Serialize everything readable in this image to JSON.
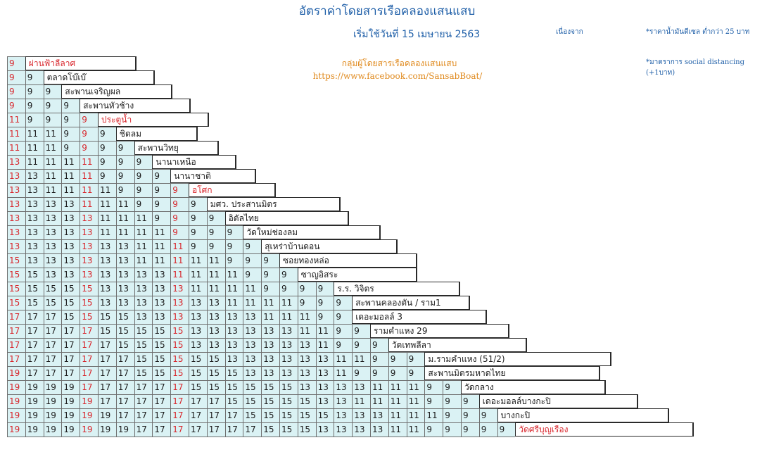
{
  "title": "อัตราค่าโดยสารเรือคลองแสนแสบ",
  "effective": "เริ่มใช้วันที่  15  เมษายน 2563",
  "reason_label": "เนื่องจาก",
  "note_fuel": "*ราคาน้ำมันดีเซล ต่ำกว่า 25 บาท",
  "note_distancing": "*มาตราการ social distancing (+1บาท)",
  "group_name": "กลุ่มผู้โดยสารเรือคลองแสนแสบ",
  "group_url": "https://www.facebook.com/SansabBoat/",
  "colors": {
    "cell_bg": "#daf2f4",
    "red": "#d8262c",
    "title": "#1f5fa8",
    "group": "#e08a1e"
  },
  "table": {
    "highlight_columns": [
      0,
      4,
      9
    ],
    "rows": [
      {
        "label": "ผ่านฟ้าลีลาศ",
        "label_red": true,
        "values": [
          9
        ]
      },
      {
        "label": "ตลาดโบ๊เบ๊",
        "label_red": false,
        "values": [
          9,
          9
        ]
      },
      {
        "label": "สะพานเจริญผล",
        "label_red": false,
        "values": [
          9,
          9,
          9
        ]
      },
      {
        "label": "สะพานหัวช้าง",
        "label_red": false,
        "values": [
          9,
          9,
          9,
          9
        ]
      },
      {
        "label": "ประตูน้ำ",
        "label_red": true,
        "values": [
          11,
          9,
          9,
          9,
          9
        ]
      },
      {
        "label": "ชิดลม",
        "label_red": false,
        "values": [
          11,
          11,
          11,
          9,
          9,
          9
        ]
      },
      {
        "label": "สะพานวิทยุ",
        "label_red": false,
        "values": [
          11,
          11,
          11,
          9,
          9,
          9,
          9
        ]
      },
      {
        "label": "นานาเหนือ",
        "label_red": false,
        "values": [
          13,
          11,
          11,
          11,
          11,
          9,
          9,
          9
        ]
      },
      {
        "label": "นานาชาติ",
        "label_red": false,
        "values": [
          13,
          13,
          11,
          11,
          11,
          9,
          9,
          9,
          9
        ]
      },
      {
        "label": "อโศก",
        "label_red": true,
        "values": [
          13,
          13,
          11,
          11,
          11,
          11,
          9,
          9,
          9,
          9
        ]
      },
      {
        "label": "มศว. ประสานมิตร",
        "label_red": false,
        "values": [
          13,
          13,
          13,
          13,
          11,
          11,
          11,
          9,
          9,
          9,
          9
        ]
      },
      {
        "label": "อิตัลไทย",
        "label_red": false,
        "values": [
          13,
          13,
          13,
          13,
          13,
          11,
          11,
          11,
          9,
          9,
          9,
          9
        ]
      },
      {
        "label": "วัดใหม่ช่องลม",
        "label_red": false,
        "values": [
          13,
          13,
          13,
          13,
          13,
          11,
          11,
          11,
          11,
          9,
          9,
          9,
          9
        ]
      },
      {
        "label": "สุเหร่าบ้านดอน",
        "label_red": false,
        "values": [
          13,
          13,
          13,
          13,
          13,
          13,
          13,
          11,
          11,
          11,
          9,
          9,
          9,
          9
        ]
      },
      {
        "label": "ซอยทองหล่อ",
        "label_red": false,
        "values": [
          15,
          13,
          13,
          13,
          13,
          13,
          13,
          11,
          11,
          11,
          11,
          11,
          9,
          9,
          9
        ]
      },
      {
        "label": "ซาญอิสระ",
        "label_red": false,
        "values": [
          15,
          15,
          13,
          13,
          13,
          13,
          13,
          13,
          13,
          11,
          11,
          11,
          11,
          9,
          9,
          9
        ]
      },
      {
        "label": "ร.ร. วิจิตร",
        "label_red": false,
        "values": [
          15,
          15,
          15,
          15,
          15,
          13,
          13,
          13,
          13,
          13,
          11,
          11,
          11,
          11,
          9,
          9,
          9,
          9
        ]
      },
      {
        "label": "สะพานคลองตัน / ราม1",
        "label_red": false,
        "values": [
          15,
          15,
          15,
          15,
          15,
          13,
          13,
          13,
          13,
          13,
          13,
          13,
          11,
          11,
          11,
          11,
          9,
          9,
          9
        ]
      },
      {
        "label": "เดอะมอลล์ 3",
        "label_red": false,
        "values": [
          17,
          17,
          17,
          15,
          15,
          15,
          15,
          13,
          13,
          13,
          13,
          13,
          13,
          13,
          11,
          11,
          11,
          9,
          9
        ]
      },
      {
        "label": "รามคำแหง 29",
        "label_red": false,
        "values": [
          17,
          17,
          17,
          17,
          17,
          15,
          15,
          15,
          15,
          15,
          13,
          13,
          13,
          13,
          13,
          13,
          11,
          11,
          9,
          9
        ]
      },
      {
        "label": "วัดเทพลีลา",
        "label_red": false,
        "values": [
          17,
          17,
          17,
          17,
          17,
          17,
          15,
          15,
          15,
          15,
          13,
          13,
          13,
          13,
          13,
          13,
          13,
          11,
          9,
          9,
          9
        ]
      },
      {
        "label": "ม.รามคำแหง (51/2)",
        "label_red": false,
        "values": [
          17,
          17,
          17,
          17,
          17,
          17,
          17,
          15,
          15,
          15,
          15,
          15,
          13,
          13,
          13,
          13,
          13,
          13,
          11,
          11,
          9,
          9,
          9
        ]
      },
      {
        "label": "สะพานมิตรมหาดไทย",
        "label_red": false,
        "values": [
          19,
          17,
          17,
          17,
          17,
          17,
          17,
          15,
          15,
          15,
          15,
          15,
          15,
          13,
          13,
          13,
          13,
          13,
          11,
          9,
          9,
          9,
          9
        ]
      },
      {
        "label": "วัดกลาง",
        "label_red": false,
        "values": [
          19,
          19,
          19,
          19,
          17,
          17,
          17,
          17,
          17,
          17,
          15,
          15,
          15,
          15,
          15,
          15,
          13,
          13,
          13,
          13,
          11,
          11,
          11,
          9,
          9
        ]
      },
      {
        "label": "เดอะมอลล์บางกะปิ",
        "label_red": false,
        "values": [
          19,
          19,
          19,
          19,
          19,
          17,
          17,
          17,
          17,
          17,
          17,
          17,
          15,
          15,
          15,
          15,
          15,
          13,
          13,
          11,
          11,
          11,
          11,
          9,
          9,
          9
        ]
      },
      {
        "label": "บางกะปิ",
        "label_red": false,
        "values": [
          19,
          19,
          19,
          19,
          19,
          19,
          17,
          17,
          17,
          17,
          17,
          17,
          17,
          15,
          15,
          15,
          15,
          15,
          13,
          13,
          13,
          11,
          11,
          11,
          9,
          9,
          9
        ]
      },
      {
        "label": "วัดศรีบุญเรือง",
        "label_red": true,
        "values": [
          19,
          19,
          19,
          19,
          19,
          19,
          19,
          17,
          17,
          17,
          17,
          17,
          17,
          17,
          15,
          15,
          15,
          13,
          13,
          13,
          13,
          11,
          11,
          9,
          9,
          9,
          9,
          9
        ]
      }
    ]
  }
}
